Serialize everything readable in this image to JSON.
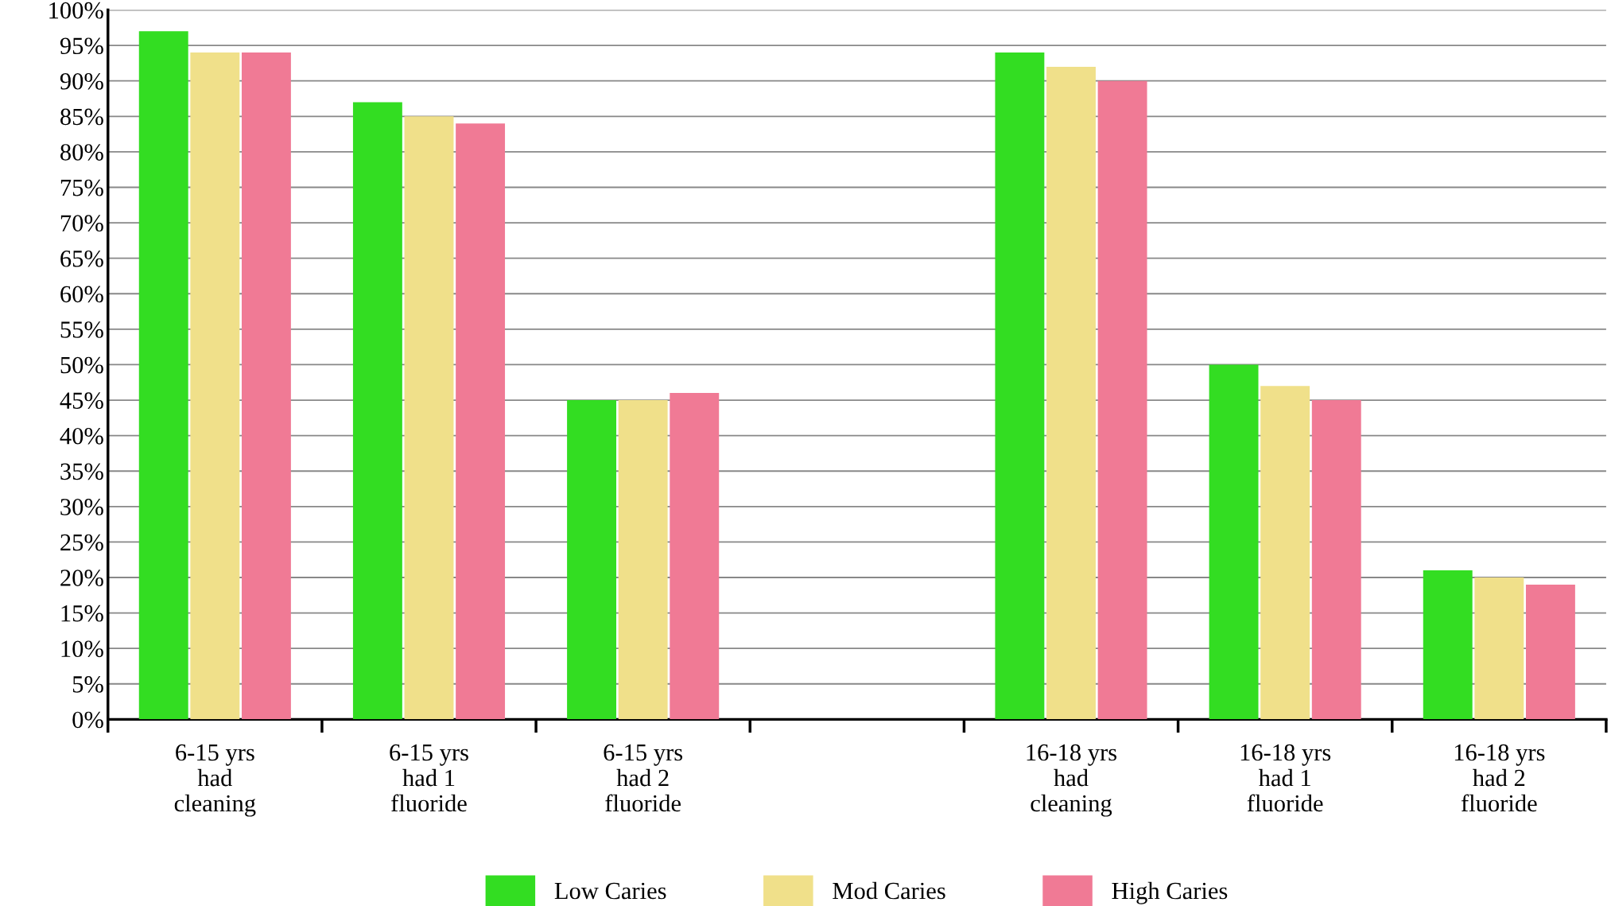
{
  "chart_data": {
    "type": "bar",
    "categories": [
      "6-15 yrs\nhad\ncleaning",
      "6-15 yrs\nhad 1\nfluoride",
      "6-15 yrs\nhad 2\nfluoride",
      null,
      "16-18 yrs\nhad\ncleaning",
      "16-18 yrs\nhad 1\nfluoride",
      "16-18 yrs\nhad 2\nfluoride"
    ],
    "series": [
      {
        "name": "Low Caries",
        "color": "#33dd22",
        "values": [
          97,
          87,
          45,
          null,
          94,
          50,
          21
        ]
      },
      {
        "name": "Mod Caries",
        "color": "#f0e08a",
        "values": [
          94,
          85,
          45,
          null,
          92,
          47,
          20
        ]
      },
      {
        "name": "High Caries",
        "color": "#f07a95",
        "values": [
          94,
          84,
          46,
          null,
          90,
          45,
          19
        ]
      }
    ],
    "ylim": [
      0,
      100
    ],
    "yticks": [
      {
        "value": 0,
        "label": "0%"
      },
      {
        "value": 5,
        "label": "5%"
      },
      {
        "value": 10,
        "label": "10%"
      },
      {
        "value": 15,
        "label": "15%"
      },
      {
        "value": 20,
        "label": "20%"
      },
      {
        "value": 25,
        "label": "25%"
      },
      {
        "value": 30,
        "label": "30%"
      },
      {
        "value": 35,
        "label": "35%"
      },
      {
        "value": 40,
        "label": "40%"
      },
      {
        "value": 45,
        "label": "45%"
      },
      {
        "value": 50,
        "label": "50%"
      },
      {
        "value": 55,
        "label": "55%"
      },
      {
        "value": 60,
        "label": "60%"
      },
      {
        "value": 65,
        "label": "65%"
      },
      {
        "value": 70,
        "label": "70%"
      },
      {
        "value": 75,
        "label": "75%"
      },
      {
        "value": 80,
        "label": "80%"
      },
      {
        "value": 85,
        "label": "85%"
      },
      {
        "value": 90,
        "label": "90%"
      },
      {
        "value": 95,
        "label": "95%"
      },
      {
        "value": 100,
        "label": "100%"
      }
    ],
    "grid": "y",
    "legend": "bottom"
  }
}
